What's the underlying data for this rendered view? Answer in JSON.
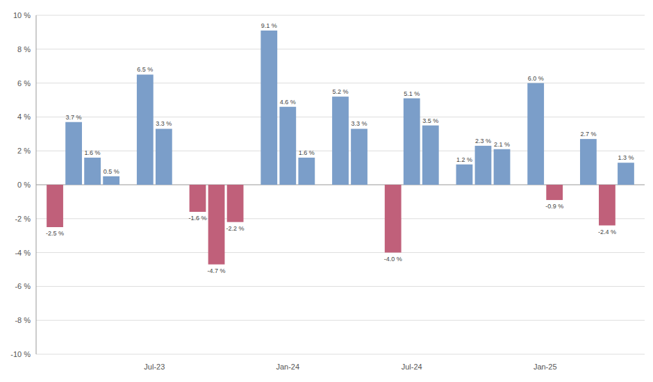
{
  "chart_data": {
    "type": "bar",
    "categories": [
      null,
      "Jul-23",
      null,
      "Jan-24",
      null,
      "Jul-24",
      null,
      "Jan-25",
      null
    ],
    "values": [
      [
        -2.5,
        3.7,
        1.6,
        0.5
      ],
      [
        6.5,
        3.3
      ],
      [
        -1.6,
        -4.7,
        -2.2
      ],
      [
        9.1,
        4.6,
        1.6
      ],
      [
        5.2,
        3.3
      ],
      [
        -4.0,
        5.1,
        3.5
      ],
      [
        1.2,
        2.3,
        2.1
      ],
      [
        6.0,
        -0.9
      ],
      [
        2.7,
        -2.4,
        1.3
      ]
    ],
    "value_labels": [
      [
        "-2.5 %",
        "3.7 %",
        "1.6 %",
        "0.5 %"
      ],
      [
        "6.5 %",
        "3.3 %"
      ],
      [
        "-1.6 %",
        "-4.7 %",
        "-2.2 %"
      ],
      [
        "9.1 %",
        "4.6 %",
        "1.6 %"
      ],
      [
        "5.2 %",
        "3.3 %"
      ],
      [
        "-4.0 %",
        "5.1 %",
        "3.5 %"
      ],
      [
        "1.2 %",
        "2.3 %",
        "2.1 %"
      ],
      [
        "6.0 %",
        "-0.9 %"
      ],
      [
        "2.7 %",
        "-2.4 %",
        "1.3 %"
      ]
    ],
    "colors": [
      [
        "#c0607a",
        "#7b9ec9",
        "#7b9ec9",
        "#7b9ec9"
      ],
      [
        "#7b9ec9",
        "#7b9ec9"
      ],
      [
        "#c0607a",
        "#c0607a",
        "#c0607a"
      ],
      [
        "#7b9ec9",
        "#7b9ec9",
        "#7b9ec9"
      ],
      [
        "#7b9ec9",
        "#7b9ec9"
      ],
      [
        "#c0607a",
        "#7b9ec9",
        "#7b9ec9"
      ],
      [
        "#7b9ec9",
        "#7b9ec9",
        "#7b9ec9"
      ],
      [
        "#7b9ec9",
        "#c0607a"
      ],
      [
        "#7b9ec9",
        "#c0607a",
        "#7b9ec9"
      ]
    ],
    "ylim": [
      -10,
      10
    ],
    "yticks": [
      {
        "value": -10,
        "label": "-10 %"
      },
      {
        "value": -8,
        "label": "-8 %"
      },
      {
        "value": -6,
        "label": "-6 %"
      },
      {
        "value": -4,
        "label": "-4 %"
      },
      {
        "value": -2,
        "label": "-2 %"
      },
      {
        "value": 0,
        "label": "0 %"
      },
      {
        "value": 2,
        "label": "2 %"
      },
      {
        "value": 4,
        "label": "4 %"
      },
      {
        "value": 6,
        "label": "6 %"
      },
      {
        "value": 8,
        "label": "8 %"
      },
      {
        "value": 10,
        "label": "10 %"
      }
    ],
    "grid": true,
    "data_labels": true
  }
}
